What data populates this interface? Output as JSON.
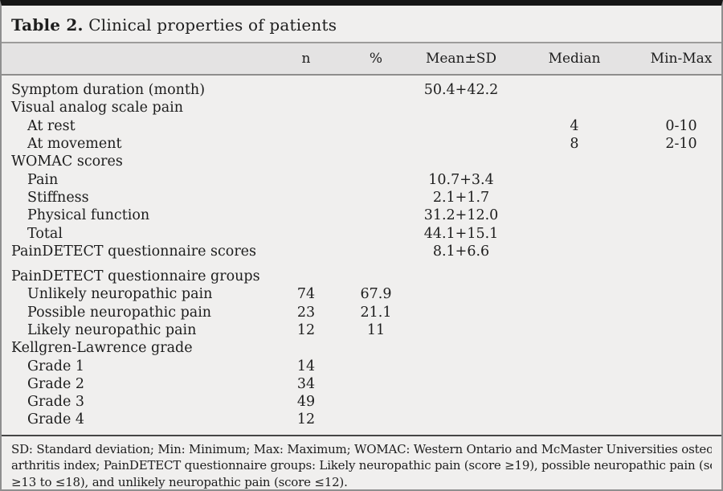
{
  "title": {
    "label": "Table 2.",
    "text": "Clinical properties of patients"
  },
  "table": {
    "headers": [
      "n",
      "%",
      "Mean±SD",
      "Median",
      "Min-Max"
    ],
    "rows": [
      {
        "label": "Symptom duration (month)",
        "indent": false,
        "n": "",
        "pct": "",
        "mean": "50.4+42.2",
        "median": "",
        "minmax": ""
      },
      {
        "label": "Visual analog scale pain",
        "indent": false,
        "n": "",
        "pct": "",
        "mean": "",
        "median": "",
        "minmax": ""
      },
      {
        "label": "At rest",
        "indent": true,
        "n": "",
        "pct": "",
        "mean": "",
        "median": "4",
        "minmax": "0-10"
      },
      {
        "label": "At movement",
        "indent": true,
        "n": "",
        "pct": "",
        "mean": "",
        "median": "8",
        "minmax": "2-10"
      },
      {
        "label": "WOMAC scores",
        "indent": false,
        "n": "",
        "pct": "",
        "mean": "",
        "median": "",
        "minmax": ""
      },
      {
        "label": "Pain",
        "indent": true,
        "n": "",
        "pct": "",
        "mean": "10.7+3.4",
        "median": "",
        "minmax": ""
      },
      {
        "label": "Stiffness",
        "indent": true,
        "n": "",
        "pct": "",
        "mean": "2.1+1.7",
        "median": "",
        "minmax": ""
      },
      {
        "label": "Physical function",
        "indent": true,
        "n": "",
        "pct": "",
        "mean": "31.2+12.0",
        "median": "",
        "minmax": ""
      },
      {
        "label": "Total",
        "indent": true,
        "n": "",
        "pct": "",
        "mean": "44.1+15.1",
        "median": "",
        "minmax": ""
      },
      {
        "label": "PainDETECT questionnaire scores",
        "indent": false,
        "n": "",
        "pct": "",
        "mean": "8.1+6.6",
        "median": "",
        "minmax": ""
      },
      {
        "label": "PainDETECT questionnaire groups",
        "indent": false,
        "gap_before": true,
        "n": "",
        "pct": "",
        "mean": "",
        "median": "",
        "minmax": ""
      },
      {
        "label": "Unlikely neuropathic pain",
        "indent": true,
        "n": "74",
        "pct": "67.9",
        "mean": "",
        "median": "",
        "minmax": ""
      },
      {
        "label": "Possible neuropathic pain",
        "indent": true,
        "n": "23",
        "pct": "21.1",
        "mean": "",
        "median": "",
        "minmax": ""
      },
      {
        "label": "Likely neuropathic pain",
        "indent": true,
        "n": "12",
        "pct": "11",
        "mean": "",
        "median": "",
        "minmax": ""
      },
      {
        "label": "Kellgren-Lawrence grade",
        "indent": false,
        "n": "",
        "pct": "",
        "mean": "",
        "median": "",
        "minmax": ""
      },
      {
        "label": "Grade 1",
        "indent": true,
        "n": "14",
        "pct": "",
        "mean": "",
        "median": "",
        "minmax": ""
      },
      {
        "label": "Grade 2",
        "indent": true,
        "n": "34",
        "pct": "",
        "mean": "",
        "median": "",
        "minmax": ""
      },
      {
        "label": "Grade 3",
        "indent": true,
        "n": "49",
        "pct": "",
        "mean": "",
        "median": "",
        "minmax": ""
      },
      {
        "label": "Grade 4",
        "indent": true,
        "n": "12",
        "pct": "",
        "mean": "",
        "median": "",
        "minmax": ""
      }
    ]
  },
  "footnote": {
    "lines": [
      "SD: Standard deviation; Min: Minimum; Max: Maximum; WOMAC: Western Ontario and McMaster Universities osteo-",
      "arthritis index; PainDETECT questionnaire groups: Likely neuropathic pain (score ≥19), possible neuropathic pain (score",
      "≥13 to ≤18), and unlikely neuropathic pain (score ≤12)."
    ]
  },
  "colors": {
    "background": "#f0efee",
    "header_band": "#e4e3e3",
    "top_bar": "#161616",
    "outer_border": "#8f8f8f",
    "footnote_rule": "#454545",
    "text": "#1d1d1d"
  }
}
